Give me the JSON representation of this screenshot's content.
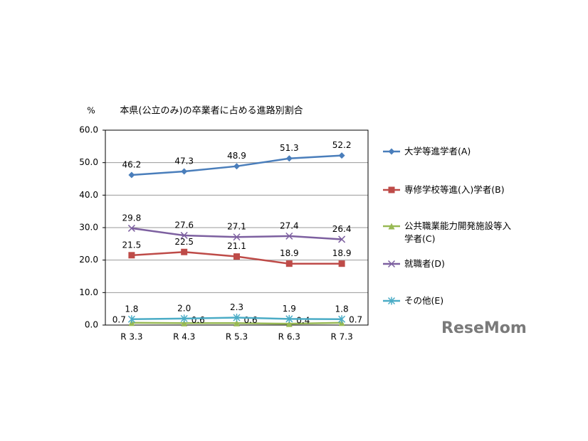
{
  "chart_data": {
    "type": "line",
    "title": "本県(公立のみ)の卒業者に占める進路別割合",
    "y_unit_label": "%",
    "categories": [
      "R 3.3",
      "R 4.3",
      "R 5.3",
      "R 6.3",
      "R 7.3"
    ],
    "series": [
      {
        "name": "大学等進学者(A)",
        "color": "#4a7ebb",
        "marker": "diamond",
        "values": [
          46.2,
          47.3,
          48.9,
          51.3,
          52.2
        ]
      },
      {
        "name": "専修学校等進(入)学者(B)",
        "color": "#be4b48",
        "marker": "square",
        "values": [
          21.5,
          22.5,
          21.1,
          18.9,
          18.9
        ]
      },
      {
        "name": "公共職業能力開発施設等入学者(C)",
        "color": "#98b954",
        "marker": "triangle",
        "values": [
          0.7,
          0.6,
          0.6,
          0.4,
          0.7
        ]
      },
      {
        "name": "就職者(D)",
        "color": "#7d60a0",
        "marker": "x",
        "values": [
          29.8,
          27.6,
          27.1,
          27.4,
          26.4
        ]
      },
      {
        "name": "その他(E)",
        "color": "#4bacc6",
        "marker": "star",
        "values": [
          1.8,
          2.0,
          2.3,
          1.9,
          1.8
        ],
        "value_labels": [
          "1.8",
          "2.0",
          "2.3",
          "1.9",
          "1.8"
        ]
      }
    ],
    "ylim": [
      0,
      60
    ],
    "yticks": [
      {
        "value": 0,
        "label": "0.0"
      },
      {
        "value": 10,
        "label": "10.0"
      },
      {
        "value": 20,
        "label": "20.0"
      },
      {
        "value": 30,
        "label": "30.0"
      },
      {
        "value": 40,
        "label": "40.0"
      },
      {
        "value": 50,
        "label": "50.0"
      },
      {
        "value": 60,
        "label": "60.0"
      }
    ],
    "grid": true,
    "legend": "right",
    "watermark": "ReseMom"
  }
}
